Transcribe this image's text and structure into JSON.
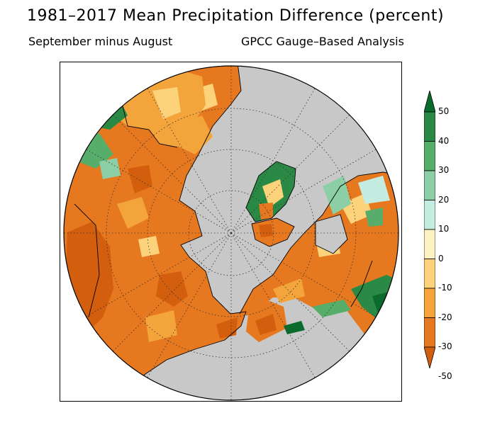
{
  "header": {
    "title": "1981–2017 Mean Precipitation Difference (percent)",
    "subtitle_left": "September minus August",
    "subtitle_right": "GPCC Gauge–Based Analysis"
  },
  "map": {
    "projection": "north polar stereographic",
    "ocean_color": "#c8c8c8",
    "gridlines": "dotted"
  },
  "colorbar": {
    "labels": [
      "50",
      "40",
      "30",
      "20",
      "10",
      "0",
      "-10",
      "-20",
      "-30",
      "-50"
    ],
    "colors": [
      "#0b6b2c",
      "#2a8a45",
      "#57ad6a",
      "#8ccfa6",
      "#c4ece1",
      "#fff2c2",
      "#fcd27b",
      "#f3a53b",
      "#e6781f",
      "#d35e0e"
    ]
  }
}
